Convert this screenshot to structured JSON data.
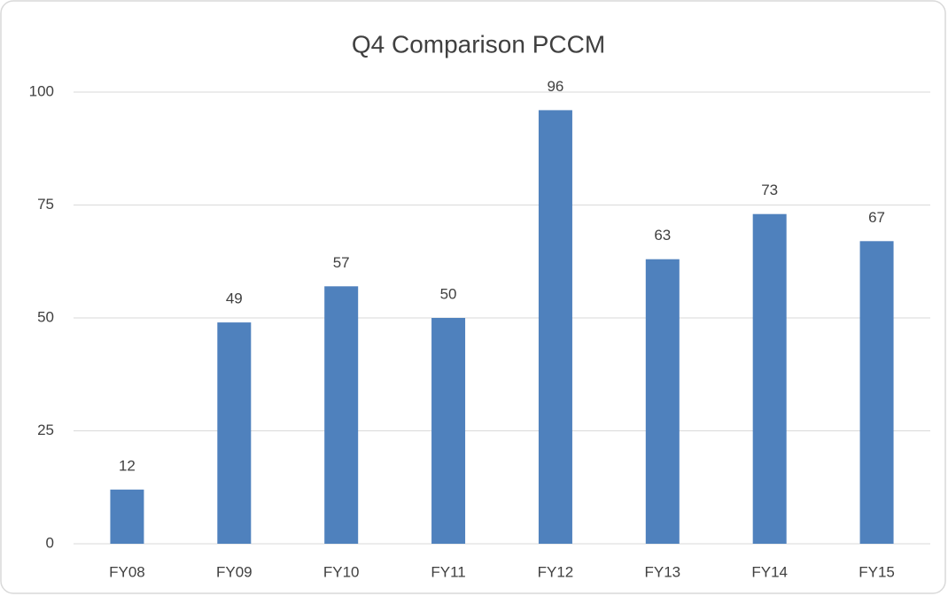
{
  "chart_data": {
    "type": "bar",
    "title": "Q4 Comparison PCCM",
    "categories": [
      "FY08",
      "FY09",
      "FY10",
      "FY11",
      "FY12",
      "FY13",
      "FY14",
      "FY15"
    ],
    "values": [
      12,
      49,
      57,
      50,
      96,
      63,
      73,
      67
    ],
    "color": "#4f81bd",
    "ylim": [
      0,
      100
    ],
    "yticks": [
      0,
      25,
      50,
      75,
      100
    ],
    "grid": true,
    "data_labels": true
  }
}
